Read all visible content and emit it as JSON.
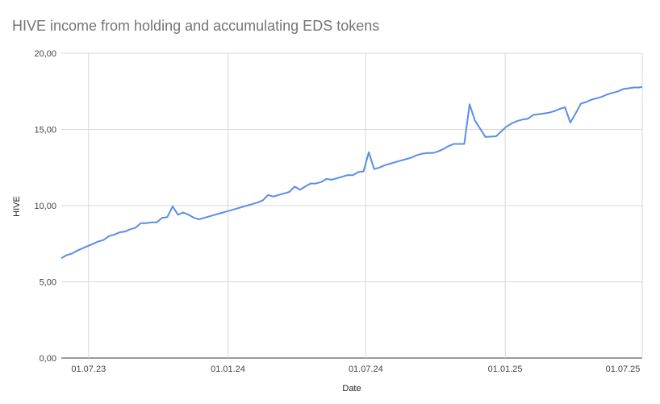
{
  "chart_data": {
    "type": "line",
    "title": "HIVE income from holding and accumulating EDS tokens",
    "xlabel": "Date",
    "ylabel": "HIVE",
    "ylim": [
      0,
      20
    ],
    "xlim": [
      "2023-05-26",
      "2025-07-01"
    ],
    "grid": true,
    "legend": "none",
    "color": "#5b8ee6",
    "yticks": [
      "0,00",
      "5,00",
      "10,00",
      "15,00",
      "20,00"
    ],
    "xticks": [
      {
        "date": "2023-07-01",
        "label": "01.07.23"
      },
      {
        "date": "2024-01-01",
        "label": "01.01.24"
      },
      {
        "date": "2024-07-01",
        "label": "01.07.24"
      },
      {
        "date": "2025-01-01",
        "label": "01.01.25"
      },
      {
        "date": "2025-07-01",
        "label": "01.07.25"
      }
    ],
    "series": [
      {
        "x": [
          "2023-05-26",
          "2023-06-02",
          "2023-06-09",
          "2023-06-16",
          "2023-06-23",
          "2023-06-30",
          "2023-07-07",
          "2023-07-14",
          "2023-07-21",
          "2023-07-28",
          "2023-08-04",
          "2023-08-11",
          "2023-08-18",
          "2023-08-25",
          "2023-09-01",
          "2023-09-08",
          "2023-09-15",
          "2023-09-22",
          "2023-09-29",
          "2023-10-06",
          "2023-10-13",
          "2023-10-20",
          "2023-10-27",
          "2023-11-03",
          "2023-11-10",
          "2023-11-17",
          "2023-11-24",
          "2023-12-01",
          "2023-12-08",
          "2023-12-15",
          "2023-12-22",
          "2023-12-29",
          "2024-01-05",
          "2024-01-12",
          "2024-01-19",
          "2024-01-26",
          "2024-02-02",
          "2024-02-09",
          "2024-02-16",
          "2024-02-23",
          "2024-03-01",
          "2024-03-08",
          "2024-03-15",
          "2024-03-22",
          "2024-03-29",
          "2024-04-05",
          "2024-04-12",
          "2024-04-19",
          "2024-04-26",
          "2024-05-03",
          "2024-05-10",
          "2024-05-17",
          "2024-05-24",
          "2024-05-31",
          "2024-06-07",
          "2024-06-14",
          "2024-06-21",
          "2024-06-28",
          "2024-07-05",
          "2024-07-12",
          "2024-07-19",
          "2024-07-26",
          "2024-08-02",
          "2024-08-09",
          "2024-08-16",
          "2024-08-23",
          "2024-08-30",
          "2024-09-06",
          "2024-09-13",
          "2024-09-20",
          "2024-09-27",
          "2024-10-04",
          "2024-10-11",
          "2024-10-18",
          "2024-10-25",
          "2024-11-01",
          "2024-11-08",
          "2024-11-15",
          "2024-11-22",
          "2024-12-06",
          "2024-12-20",
          "2025-01-03",
          "2025-01-10",
          "2025-01-17",
          "2025-01-24",
          "2025-01-31",
          "2025-02-07",
          "2025-02-14",
          "2025-02-21",
          "2025-02-28",
          "2025-03-07",
          "2025-03-14",
          "2025-03-21",
          "2025-03-28",
          "2025-04-04",
          "2025-04-11",
          "2025-04-18",
          "2025-04-25",
          "2025-05-02",
          "2025-05-09",
          "2025-05-16",
          "2025-05-23",
          "2025-05-30",
          "2025-06-06",
          "2025-06-13",
          "2025-06-20",
          "2025-06-27",
          "2025-07-01"
        ],
        "y": [
          6.55,
          6.75,
          6.85,
          7.05,
          7.2,
          7.35,
          7.5,
          7.65,
          7.75,
          8.0,
          8.1,
          8.25,
          8.3,
          8.45,
          8.55,
          8.85,
          8.85,
          8.9,
          8.9,
          9.2,
          9.25,
          9.95,
          9.4,
          9.55,
          9.4,
          9.2,
          9.1,
          9.2,
          9.3,
          9.4,
          9.5,
          9.6,
          9.7,
          9.8,
          9.9,
          10.0,
          10.1,
          10.2,
          10.35,
          10.7,
          10.6,
          10.7,
          10.8,
          10.9,
          11.25,
          11.05,
          11.25,
          11.45,
          11.45,
          11.55,
          11.75,
          11.7,
          11.8,
          11.9,
          12.0,
          12.0,
          12.2,
          12.25,
          13.5,
          12.4,
          12.5,
          12.65,
          12.75,
          12.85,
          12.95,
          13.05,
          13.15,
          13.3,
          13.4,
          13.45,
          13.45,
          13.55,
          13.7,
          13.9,
          14.05,
          14.05,
          14.05,
          16.65,
          15.6,
          14.5,
          14.55,
          15.2,
          15.4,
          15.55,
          15.65,
          15.7,
          15.95,
          16.0,
          16.05,
          16.1,
          16.2,
          16.35,
          16.45,
          15.45,
          16.05,
          16.7,
          16.8,
          16.95,
          17.05,
          17.15,
          17.3,
          17.4,
          17.5,
          17.65,
          17.7,
          17.75,
          17.75,
          17.8
        ]
      }
    ]
  }
}
